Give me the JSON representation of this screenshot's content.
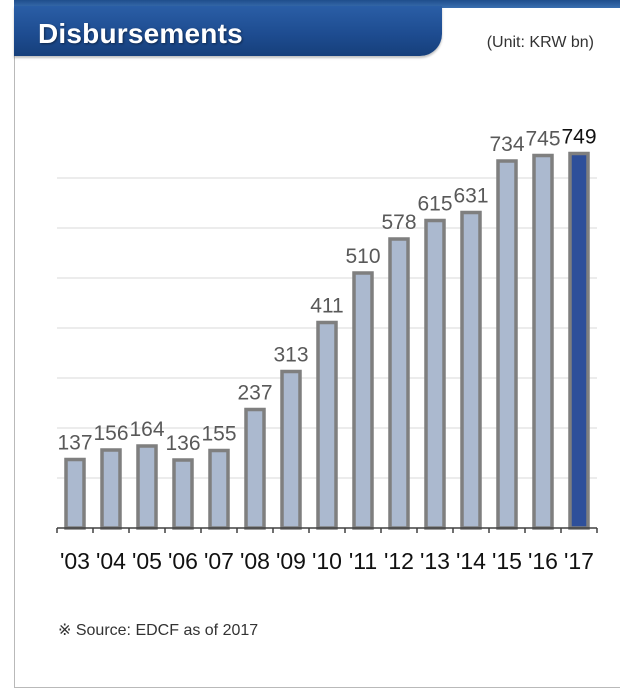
{
  "header": {
    "title": "Disbursements",
    "unit": "(Unit: KRW bn)"
  },
  "footer": {
    "source": "※ Source: EDCF as of 2017"
  },
  "colors": {
    "bar_fill": "#abb9cf",
    "bar_highlight_fill": "#2e4f9a",
    "bar_stroke": "#7f7f7f",
    "title_bg": "#1d4b8f",
    "gridline": "#d9d9d9"
  },
  "chart_data": {
    "type": "bar",
    "categories": [
      "'03",
      "'04",
      "'05",
      "'06",
      "'07",
      "'08",
      "'09",
      "'10",
      "'11",
      "'12",
      "'13",
      "'14",
      "'15",
      "'16",
      "'17"
    ],
    "values": [
      137,
      156,
      164,
      136,
      155,
      237,
      313,
      411,
      510,
      578,
      615,
      631,
      734,
      745,
      749
    ],
    "highlight_index": 14,
    "ylim": [
      0,
      800
    ],
    "grid": true,
    "legend": "none",
    "xlabel": "",
    "ylabel": ""
  }
}
